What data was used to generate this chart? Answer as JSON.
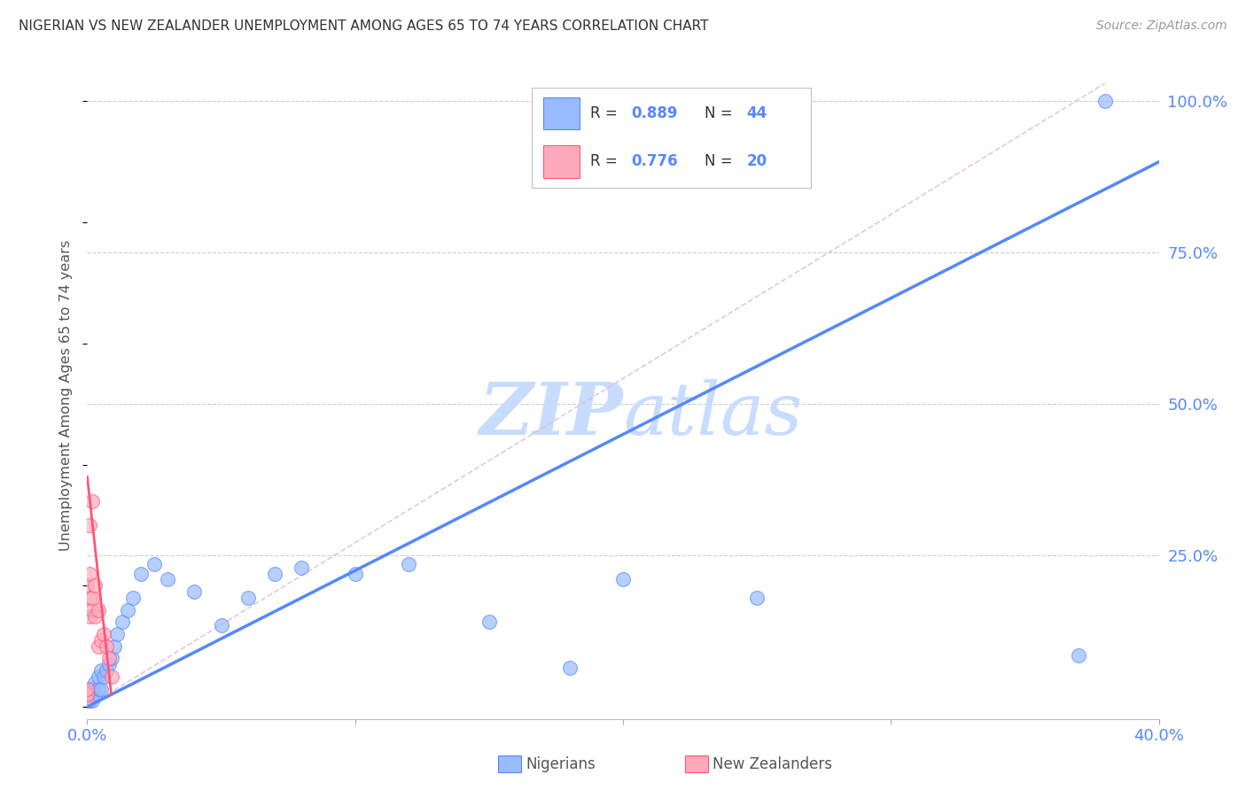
{
  "title": "NIGERIAN VS NEW ZEALANDER UNEMPLOYMENT AMONG AGES 65 TO 74 YEARS CORRELATION CHART",
  "source": "Source: ZipAtlas.com",
  "ylabel": "Unemployment Among Ages 65 to 74 years",
  "xlim": [
    0.0,
    0.4
  ],
  "ylim": [
    -0.02,
    1.05
  ],
  "xticks": [
    0.0,
    0.1,
    0.2,
    0.3,
    0.4
  ],
  "xticklabels": [
    "0.0%",
    "",
    "",
    "",
    "40.0%"
  ],
  "yticks": [
    0.0,
    0.25,
    0.5,
    0.75,
    1.0
  ],
  "yticklabels": [
    "",
    "25.0%",
    "50.0%",
    "75.0%",
    "100.0%"
  ],
  "background_color": "#ffffff",
  "grid_color": "#cccccc",
  "blue_color": "#5588ff",
  "blue_fill": "#99bbff",
  "pink_color": "#ff5577",
  "pink_fill": "#ffaabb",
  "watermark_color": "#c8dcff",
  "nigerian_x": [
    0.0,
    0.0,
    0.0,
    0.0,
    0.0,
    0.001,
    0.001,
    0.001,
    0.001,
    0.001,
    0.002,
    0.002,
    0.002,
    0.003,
    0.003,
    0.004,
    0.004,
    0.005,
    0.005,
    0.006,
    0.007,
    0.008,
    0.009,
    0.01,
    0.011,
    0.013,
    0.015,
    0.017,
    0.02,
    0.025,
    0.03,
    0.04,
    0.05,
    0.06,
    0.07,
    0.08,
    0.1,
    0.12,
    0.15,
    0.18,
    0.2,
    0.25,
    0.37,
    0.38
  ],
  "nigerian_y": [
    0.01,
    0.01,
    0.01,
    0.02,
    0.02,
    0.01,
    0.01,
    0.02,
    0.02,
    0.03,
    0.01,
    0.02,
    0.03,
    0.02,
    0.04,
    0.03,
    0.05,
    0.03,
    0.06,
    0.05,
    0.06,
    0.07,
    0.08,
    0.1,
    0.12,
    0.14,
    0.16,
    0.18,
    0.22,
    0.235,
    0.21,
    0.19,
    0.135,
    0.18,
    0.22,
    0.23,
    0.22,
    0.235,
    0.14,
    0.065,
    0.21,
    0.18,
    0.085,
    1.0
  ],
  "nz_x": [
    0.0,
    0.0,
    0.0,
    0.0,
    0.001,
    0.001,
    0.001,
    0.001,
    0.002,
    0.002,
    0.002,
    0.003,
    0.003,
    0.004,
    0.004,
    0.005,
    0.006,
    0.007,
    0.008,
    0.009
  ],
  "nz_y": [
    0.01,
    0.02,
    0.03,
    0.2,
    0.15,
    0.18,
    0.22,
    0.3,
    0.16,
    0.18,
    0.34,
    0.15,
    0.2,
    0.1,
    0.16,
    0.11,
    0.12,
    0.1,
    0.08,
    0.05
  ],
  "blue_line_x": [
    0.0,
    0.4
  ],
  "blue_line_y": [
    0.0,
    0.9
  ],
  "pink_line_x": [
    0.0,
    0.009
  ],
  "pink_line_y": [
    0.38,
    0.02
  ],
  "ref_line_x": [
    0.0,
    0.38
  ],
  "ref_line_y": [
    0.0,
    1.03
  ]
}
